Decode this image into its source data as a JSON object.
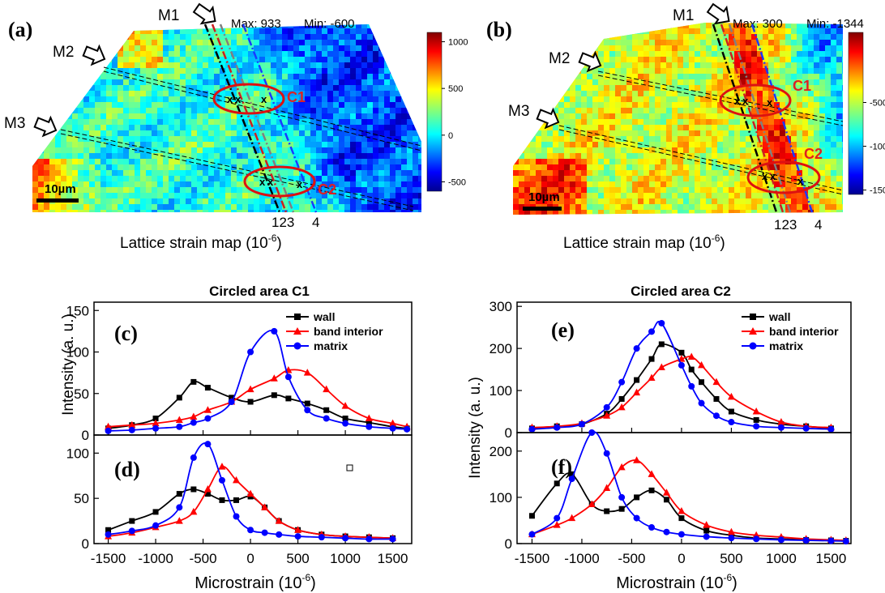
{
  "colors": {
    "wall": "#000000",
    "band_interior": "#ff0000",
    "matrix": "#0000ff",
    "circle": "#dd1111",
    "annotation": "#e02020"
  },
  "maps": [
    {
      "panel": "(a)",
      "max_label": "Max: 933",
      "min_label": "Min: -600",
      "colorbar_ticks": [
        "1000",
        "500",
        "0",
        "-500"
      ],
      "colorbar_range": [
        -600,
        1100
      ],
      "markers": [
        "M1",
        "M2",
        "M3"
      ],
      "circles": [
        "C1",
        "C2"
      ],
      "line_numbers": "123",
      "line_number_4": "4",
      "scale_bar": "10µm",
      "caption_main": "Lattice strain map (10",
      "caption_exp": "-6",
      "caption_end": ")"
    },
    {
      "panel": "(b)",
      "max_label": "Max: 300",
      "min_label": "Min: -1344",
      "colorbar_ticks": [
        "-500",
        "-1000",
        "-1500"
      ],
      "colorbar_range": [
        -1550,
        300
      ],
      "markers": [
        "M1",
        "M2",
        "M3"
      ],
      "circles": [
        "C1",
        "C2"
      ],
      "line_numbers": "123",
      "line_number_4": "4",
      "scale_bar": "10µm",
      "caption_main": "Lattice strain map (10",
      "caption_exp": "-6",
      "caption_end": ")"
    }
  ],
  "shared": {
    "ylabel": "Intensity (a. u.)",
    "xlabel_main": "Microstrain (10",
    "xlabel_exp": "-6",
    "xlabel_end": ")",
    "x_ticks": [
      "-1500",
      "-1000",
      "-500",
      "0",
      "500",
      "1000",
      "1500"
    ]
  },
  "chart_data": [
    {
      "type": "line",
      "group_title": "Circled area C1",
      "panel": "(c)",
      "xlim": [
        -1650,
        1700
      ],
      "ylim": [
        0,
        160
      ],
      "y_ticks": [
        "0",
        "50",
        "100",
        "150"
      ],
      "legend": [
        "wall",
        "band interior",
        "matrix"
      ],
      "x": [
        -1500,
        -1250,
        -1000,
        -750,
        -600,
        -450,
        -200,
        0,
        250,
        400,
        600,
        800,
        1000,
        1250,
        1500,
        1650
      ],
      "series": [
        {
          "name": "wall",
          "values": [
            8,
            12,
            20,
            45,
            64,
            57,
            45,
            40,
            48,
            44,
            38,
            30,
            20,
            15,
            10,
            8
          ]
        },
        {
          "name": "band interior",
          "values": [
            10,
            12,
            14,
            18,
            22,
            30,
            40,
            55,
            68,
            78,
            75,
            55,
            35,
            20,
            14,
            10
          ]
        },
        {
          "name": "matrix",
          "values": [
            5,
            6,
            8,
            10,
            15,
            20,
            40,
            100,
            125,
            70,
            30,
            20,
            14,
            10,
            8,
            7
          ]
        }
      ]
    },
    {
      "type": "line",
      "panel": "(d)",
      "xlim": [
        -1650,
        1700
      ],
      "ylim": [
        0,
        120
      ],
      "y_ticks": [
        "0",
        "50",
        "100"
      ],
      "x": [
        -1500,
        -1250,
        -1000,
        -750,
        -600,
        -450,
        -300,
        -150,
        0,
        150,
        300,
        500,
        750,
        1000,
        1250,
        1500
      ],
      "series": [
        {
          "name": "wall",
          "values": [
            15,
            25,
            35,
            55,
            60,
            55,
            48,
            48,
            52,
            40,
            25,
            15,
            10,
            8,
            7,
            6
          ]
        },
        {
          "name": "band interior",
          "values": [
            8,
            12,
            18,
            25,
            35,
            60,
            85,
            70,
            55,
            40,
            25,
            15,
            10,
            8,
            7,
            6
          ]
        },
        {
          "name": "matrix",
          "values": [
            10,
            14,
            20,
            40,
            95,
            110,
            70,
            30,
            15,
            12,
            10,
            8,
            7,
            6,
            5,
            5
          ]
        }
      ]
    },
    {
      "type": "line",
      "group_title": "Circled area C2",
      "panel": "(e)",
      "xlim": [
        -1650,
        1700
      ],
      "ylim": [
        0,
        310
      ],
      "y_ticks": [
        "0",
        "100",
        "200",
        "300"
      ],
      "legend": [
        "wall",
        "band interior",
        "matrix"
      ],
      "x": [
        -1500,
        -1250,
        -1000,
        -750,
        -600,
        -450,
        -300,
        -200,
        0,
        100,
        200,
        350,
        500,
        750,
        1000,
        1250,
        1500
      ],
      "series": [
        {
          "name": "wall",
          "values": [
            10,
            15,
            20,
            45,
            80,
            125,
            175,
            210,
            190,
            150,
            120,
            80,
            50,
            30,
            20,
            15,
            10
          ]
        },
        {
          "name": "band interior",
          "values": [
            12,
            15,
            22,
            40,
            60,
            95,
            130,
            155,
            175,
            180,
            160,
            120,
            85,
            50,
            25,
            15,
            12
          ]
        },
        {
          "name": "matrix",
          "values": [
            8,
            12,
            20,
            60,
            120,
            200,
            240,
            260,
            160,
            110,
            70,
            40,
            25,
            15,
            12,
            10,
            8
          ]
        }
      ]
    },
    {
      "type": "line",
      "panel": "(f)",
      "xlim": [
        -1650,
        1700
      ],
      "ylim": [
        0,
        240
      ],
      "y_ticks": [
        "0",
        "100",
        "200"
      ],
      "x": [
        -1500,
        -1250,
        -1100,
        -900,
        -750,
        -600,
        -450,
        -300,
        -150,
        0,
        250,
        500,
        750,
        1000,
        1250,
        1500,
        1650
      ],
      "series": [
        {
          "name": "wall",
          "values": [
            60,
            130,
            150,
            85,
            70,
            75,
            100,
            115,
            95,
            55,
            28,
            18,
            12,
            10,
            8,
            7,
            6
          ]
        },
        {
          "name": "band interior",
          "values": [
            20,
            40,
            55,
            85,
            120,
            165,
            180,
            150,
            110,
            70,
            40,
            25,
            18,
            14,
            10,
            8,
            7
          ]
        },
        {
          "name": "matrix",
          "values": [
            20,
            55,
            140,
            240,
            195,
            100,
            55,
            35,
            25,
            20,
            15,
            12,
            10,
            8,
            7,
            6,
            5
          ]
        }
      ]
    }
  ]
}
